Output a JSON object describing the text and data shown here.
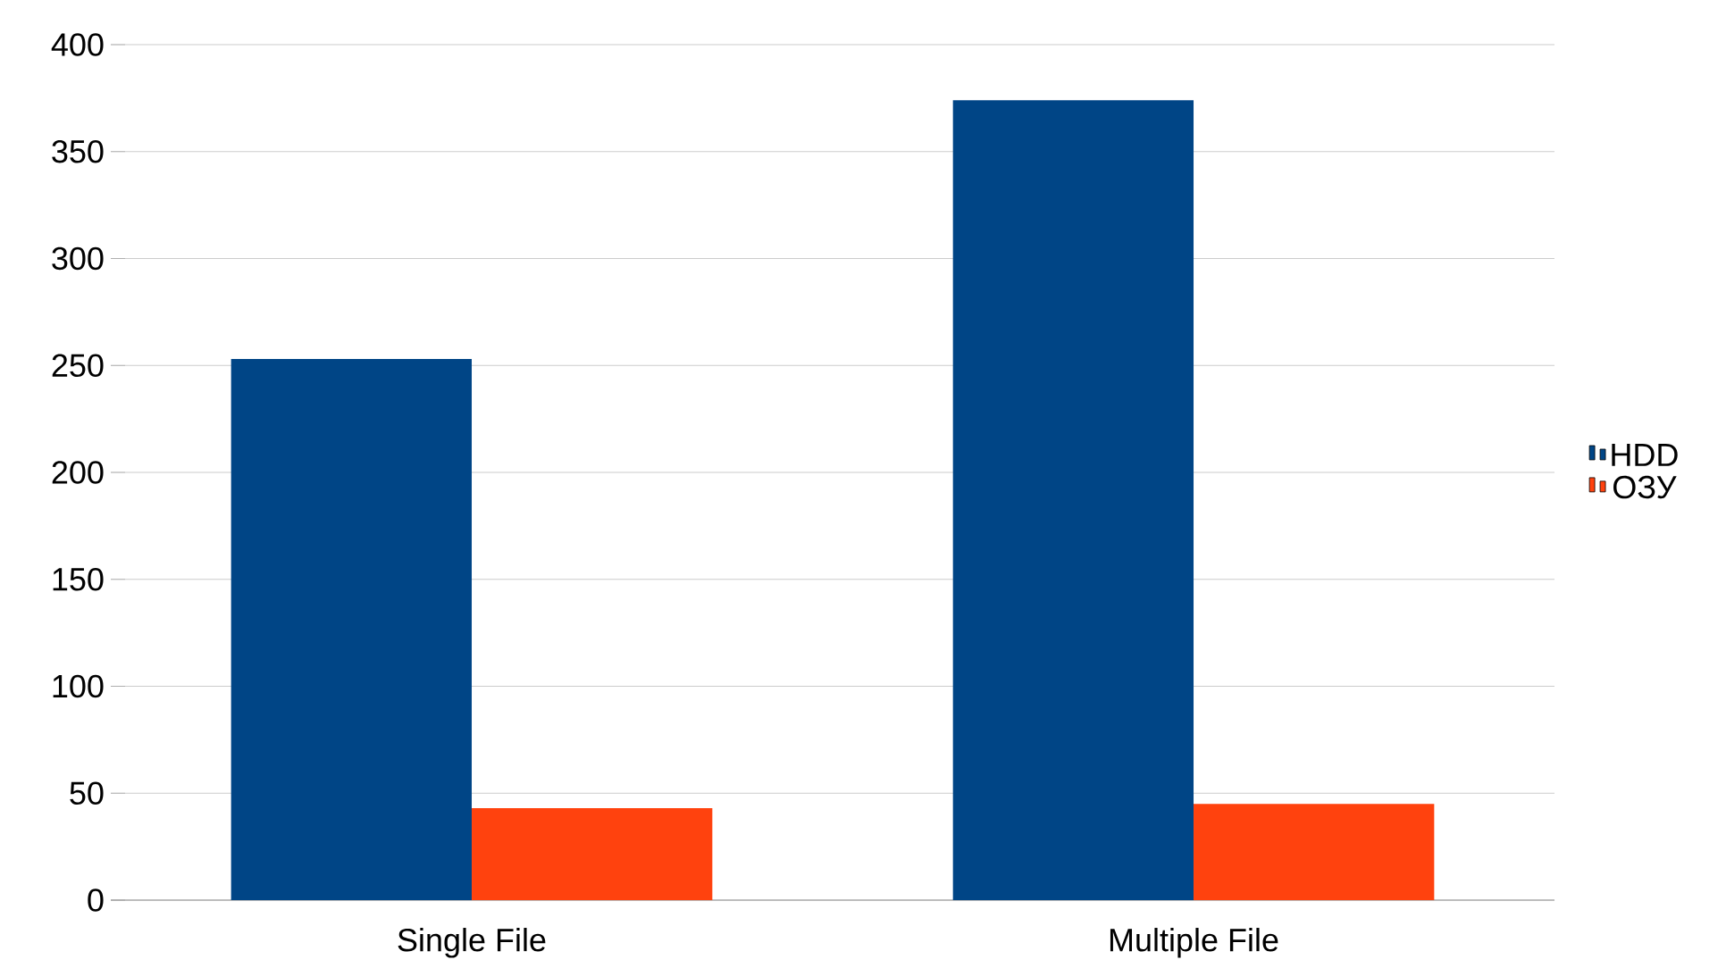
{
  "chart_data": {
    "type": "bar",
    "categories": [
      "Single File",
      "Multiple File"
    ],
    "series": [
      {
        "name": "HDD",
        "color": "#004586",
        "values": [
          253,
          374
        ]
      },
      {
        "name": "ОЗУ",
        "color": "#ff420e",
        "values": [
          43,
          45
        ]
      }
    ],
    "ylim": [
      0,
      400
    ],
    "yticks": [
      0,
      50,
      100,
      150,
      200,
      250,
      300,
      350,
      400
    ],
    "grid": "y",
    "legend": "right"
  }
}
